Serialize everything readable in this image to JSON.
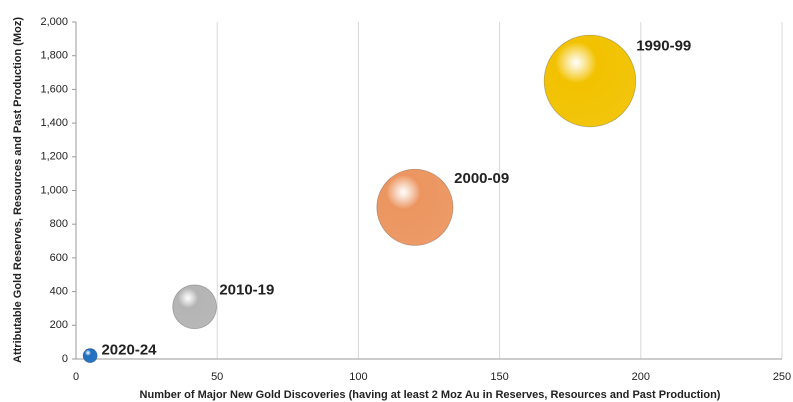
{
  "chart_data": {
    "type": "bubble",
    "x_label": "Number of Major New Gold Discoveries (having at least 2 Moz Au in Reserves, Resources and Past Production)",
    "y_label": "Attributable Gold Reserves, Resources and Past Production (Moz)",
    "xlim": [
      0,
      250
    ],
    "xticks": [
      0,
      50,
      100,
      150,
      200,
      250
    ],
    "ylim": [
      0,
      2000
    ],
    "yticks": [
      0,
      200,
      400,
      600,
      800,
      {
        "value": 1000,
        "label": "1,000"
      },
      {
        "value": 1200,
        "label": "1,200"
      },
      {
        "value": 1400,
        "label": "1,400"
      },
      {
        "value": 1600,
        "label": "1,600"
      },
      {
        "value": 1800,
        "label": "1,800"
      },
      {
        "value": 2000,
        "label": "2,000"
      }
    ],
    "x_grid": true,
    "points": [
      {
        "label": "1990-99",
        "x": 182,
        "y": 1650,
        "size": 2100,
        "color": "#f2c200"
      },
      {
        "label": "2000-09",
        "x": 120,
        "y": 900,
        "size": 1450,
        "color": "#ec9560"
      },
      {
        "label": "2010-19",
        "x": 42,
        "y": 310,
        "size": 480,
        "color": "#b4b4b4"
      },
      {
        "label": "2020-24",
        "x": 5,
        "y": 20,
        "size": 50,
        "color": "#1f6fc0"
      }
    ]
  }
}
